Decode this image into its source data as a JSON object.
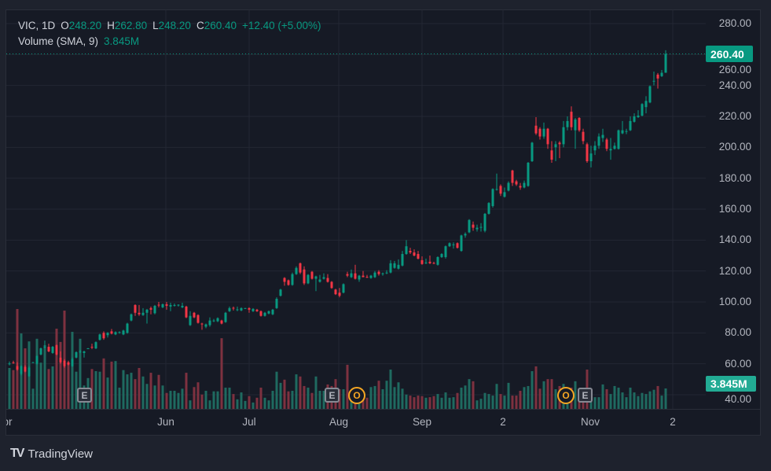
{
  "header": {
    "symbol_interval": "VIC, 1D",
    "open_label": "O",
    "open": "248.20",
    "high_label": "H",
    "high": "262.80",
    "low_label": "L",
    "low": "248.20",
    "close_label": "C",
    "close": "260.40",
    "change": "+12.40 (+5.00%)"
  },
  "volume_legend": {
    "label": "Volume (SMA, 9)",
    "value": "3.845M"
  },
  "badges": {
    "last_price": "260.40",
    "last_volume": "3.845M"
  },
  "brand": {
    "logo": "17",
    "name": "TradingView"
  },
  "colors": {
    "up": "#089981",
    "down": "#f23645",
    "volume_up": "#1f6a60",
    "volume_down": "#7e3140",
    "background": "#161a25",
    "grid": "#232733",
    "volume_badge": "#22ab94",
    "event_other": "#f5a623"
  },
  "chart_data": {
    "type": "candlestick",
    "symbol": "VIC",
    "interval": "1D",
    "y_axis": {
      "range": [
        40,
        280
      ],
      "ticks": [
        "280.00",
        "260.00",
        "240.00",
        "220.00",
        "200.00",
        "180.00",
        "160.00",
        "140.00",
        "120.00",
        "100.00",
        "80.00",
        "60.00",
        "40.00"
      ]
    },
    "x_axis": {
      "ticks": [
        "Apr",
        "Jun",
        "Jul",
        "Aug",
        "Sep",
        "2",
        "Nov",
        "2"
      ]
    },
    "grid": true,
    "last_price": 260.4,
    "events": [
      {
        "label": "E"
      },
      {
        "label": "E"
      },
      {
        "label": "O"
      },
      {
        "label": "O"
      },
      {
        "label": "E"
      }
    ],
    "candles": {
      "columns": [
        "open",
        "high",
        "low",
        "close",
        "volume_millions"
      ],
      "rows": [
        [
          59.8,
          61.5,
          59,
          60.2,
          7.7
        ],
        [
          60.9,
          62,
          60,
          60.7,
          7.3
        ],
        [
          58.5,
          61,
          55.5,
          56.3,
          18.8
        ],
        [
          53.5,
          59,
          52.5,
          58.5,
          14.2
        ],
        [
          58,
          59,
          54.5,
          55,
          11.4
        ],
        [
          52,
          58.5,
          51.5,
          57.5,
          12.7
        ],
        [
          60.8,
          61.2,
          60.6,
          61,
          3.8
        ],
        [
          60,
          65.5,
          59.5,
          65,
          13.2
        ],
        [
          66,
          70.5,
          65.5,
          70,
          8.7
        ],
        [
          70.8,
          75,
          70,
          71,
          12.0
        ],
        [
          71,
          73,
          67.5,
          68,
          7.5
        ],
        [
          67,
          71.5,
          66.5,
          71,
          8.0
        ],
        [
          72,
          72.5,
          65.5,
          66,
          15.1
        ],
        [
          64,
          68,
          60,
          61,
          12.6
        ],
        [
          62,
          63,
          57.5,
          58.5,
          18.5
        ],
        [
          61,
          62,
          59,
          59.5,
          8.6
        ],
        [
          58.5,
          64,
          58,
          63,
          14.5
        ],
        [
          64,
          68,
          63.5,
          67.5,
          7.0
        ],
        [
          67.8,
          69,
          67,
          68,
          13.2
        ],
        [
          67,
          68.5,
          64,
          68,
          4.4
        ],
        [
          69.8,
          70.2,
          69.6,
          70,
          5.8
        ],
        [
          71,
          73,
          69.5,
          70.8,
          7.5
        ],
        [
          70,
          74.5,
          69.5,
          74,
          7.1
        ],
        [
          75.5,
          79.5,
          75,
          79,
          7.0
        ],
        [
          80,
          81,
          75.5,
          76.5,
          9.5
        ],
        [
          78.5,
          80.5,
          77,
          80,
          5.9
        ],
        [
          81,
          82.5,
          79,
          79.5,
          8.9
        ],
        [
          79,
          81,
          78.5,
          80.5,
          9.0
        ],
        [
          80,
          81,
          79.5,
          80.5,
          4.0
        ],
        [
          79,
          82,
          78.5,
          81.5,
          7.3
        ],
        [
          80,
          86.5,
          79.5,
          86,
          6.5
        ],
        [
          88,
          92.5,
          87.5,
          92,
          6.8
        ],
        [
          98,
          98.5,
          91,
          93,
          5.6
        ],
        [
          93,
          98,
          91,
          92,
          7.7
        ],
        [
          91.5,
          96,
          91,
          93,
          6.1
        ],
        [
          93,
          95.5,
          86,
          95,
          4.7
        ],
        [
          96,
          97,
          92,
          95,
          6.8
        ],
        [
          92.7,
          98,
          92,
          97.5,
          4.4
        ],
        [
          98.2,
          100,
          96.5,
          98,
          6.4
        ],
        [
          96.5,
          99,
          96,
          98.5,
          4.4
        ],
        [
          98.5,
          100,
          95,
          97.5,
          3.0
        ],
        [
          97,
          99.5,
          94,
          98,
          3.4
        ],
        [
          97.8,
          99,
          97,
          98,
          3.4
        ],
        [
          98,
          98.5,
          97,
          98.2,
          3.0
        ],
        [
          96.5,
          99.5,
          96,
          97.5,
          3.8
        ],
        [
          97,
          97.5,
          89.5,
          90,
          6.8
        ],
        [
          85,
          94,
          84.5,
          91,
          1.6
        ],
        [
          93,
          93.5,
          89.5,
          90,
          4.1
        ],
        [
          91.5,
          92,
          86,
          86.5,
          5.0
        ],
        [
          86,
          86.5,
          82,
          85.5,
          2.7
        ],
        [
          84,
          86,
          83,
          85.5,
          3.4
        ],
        [
          85,
          90,
          84,
          88,
          1.6
        ],
        [
          87.8,
          89,
          87,
          88,
          3.3
        ],
        [
          87.5,
          90,
          87,
          89.5,
          3.3
        ],
        [
          88,
          88.5,
          85.5,
          86,
          13.3
        ],
        [
          87,
          93.5,
          86.5,
          93,
          4.0
        ],
        [
          94,
          97,
          93.5,
          96,
          4.0
        ],
        [
          96.2,
          97,
          94.5,
          96,
          2.8
        ],
        [
          95,
          97,
          94,
          95.2,
          1.8
        ],
        [
          94.5,
          96.5,
          94,
          96,
          3.1
        ],
        [
          95.8,
          96.2,
          95.6,
          96,
          1.5
        ],
        [
          96,
          96.5,
          93,
          95,
          2.4
        ],
        [
          94,
          96,
          93.5,
          95.5,
          1.2
        ],
        [
          95,
          95.5,
          93.5,
          94,
          2.1
        ],
        [
          94,
          94.5,
          90.5,
          91,
          4.0
        ],
        [
          91,
          93.5,
          90.5,
          93,
          2.1
        ],
        [
          92.5,
          94.5,
          92,
          94,
          1.6
        ],
        [
          92,
          95.5,
          91.5,
          95,
          3.4
        ],
        [
          96,
          103,
          95.5,
          102,
          7.0
        ],
        [
          104,
          108.5,
          103.5,
          108,
          4.9
        ],
        [
          115.5,
          116,
          110.5,
          113,
          5.5
        ],
        [
          114,
          114.5,
          110.5,
          111,
          3.3
        ],
        [
          111,
          119,
          110.5,
          118,
          3.4
        ],
        [
          118,
          123,
          117.5,
          122,
          6.5
        ],
        [
          125,
          125.5,
          118,
          119,
          6.1
        ],
        [
          121,
          123,
          111,
          112,
          4.3
        ],
        [
          112,
          118,
          111.5,
          117.5,
          4.0
        ],
        [
          119.5,
          120,
          114.5,
          115,
          3.0
        ],
        [
          115,
          117,
          107,
          116.5,
          6.1
        ],
        [
          113,
          117.5,
          112.5,
          114.5,
          3.4
        ],
        [
          115,
          118.5,
          114.5,
          116,
          3.4
        ],
        [
          115.5,
          118,
          112.5,
          113,
          4.6
        ],
        [
          113,
          113.5,
          108.5,
          109,
          4.3
        ],
        [
          108,
          108.5,
          104.5,
          105,
          5.6
        ],
        [
          106,
          109,
          103,
          104,
          3.7
        ],
        [
          106,
          112,
          105.5,
          111.5,
          3.7
        ],
        [
          118,
          119.5,
          116,
          117,
          8.3
        ],
        [
          116,
          121,
          115.5,
          118.5,
          3.0
        ],
        [
          118.5,
          124,
          114.5,
          115,
          3.0
        ],
        [
          114.5,
          117.5,
          113,
          117,
          3.0
        ],
        [
          117,
          120,
          116,
          116,
          3.0
        ],
        [
          116.2,
          117.5,
          115.5,
          116,
          2.1
        ],
        [
          115.5,
          117.5,
          115,
          117,
          4.1
        ],
        [
          116,
          120,
          115.5,
          119,
          4.3
        ],
        [
          119.5,
          120.5,
          117,
          118,
          5.3
        ],
        [
          118.3,
          119,
          117,
          118.5,
          3.7
        ],
        [
          118.5,
          120.5,
          118,
          119,
          5.3
        ],
        [
          119,
          127,
          118.5,
          125,
          7.4
        ],
        [
          122,
          126.5,
          121.5,
          125,
          4.1
        ],
        [
          121.5,
          127.5,
          121,
          124,
          5.0
        ],
        [
          123.5,
          133,
          123,
          131,
          3.8
        ],
        [
          131,
          140,
          130.5,
          136,
          2.7
        ],
        [
          133,
          135,
          131,
          132,
          2.5
        ],
        [
          132,
          134,
          129.5,
          130,
          2.2
        ],
        [
          131,
          133,
          127.5,
          128,
          2.5
        ],
        [
          127,
          129.5,
          124,
          124.5,
          2.4
        ],
        [
          125.2,
          128,
          124.5,
          125.5,
          2.1
        ],
        [
          126,
          130,
          124.5,
          125,
          2.2
        ],
        [
          125.2,
          126,
          124.5,
          125,
          2.4
        ],
        [
          124,
          129.5,
          123.5,
          129,
          2.8
        ],
        [
          129,
          131.5,
          128.5,
          131,
          2.1
        ],
        [
          129,
          136.5,
          128,
          136,
          3.1
        ],
        [
          136,
          138.5,
          135.5,
          138,
          2.1
        ],
        [
          137,
          138.5,
          134.5,
          137.2,
          2.2
        ],
        [
          138,
          138.5,
          134.5,
          135,
          3.0
        ],
        [
          133,
          143.5,
          132.5,
          143,
          4.0
        ],
        [
          143,
          145,
          141.5,
          144,
          4.4
        ],
        [
          145,
          153.5,
          144.5,
          153,
          5.6
        ],
        [
          150,
          152,
          146,
          148,
          5.2
        ],
        [
          147,
          150,
          145.5,
          148,
          1.6
        ],
        [
          148,
          151,
          145.5,
          148.5,
          1.9
        ],
        [
          146,
          157.5,
          145,
          157,
          3.0
        ],
        [
          157,
          164.5,
          156.5,
          164,
          2.8
        ],
        [
          162,
          173.5,
          161,
          173,
          2.5
        ],
        [
          172.5,
          183,
          172,
          173,
          4.7
        ],
        [
          175,
          176,
          168.5,
          170,
          2.8
        ],
        [
          168,
          174,
          167.5,
          171,
          2.5
        ],
        [
          172,
          178,
          171.5,
          177,
          4.9
        ],
        [
          185,
          185.5,
          175,
          177,
          2.5
        ],
        [
          178,
          179,
          175,
          176,
          2.5
        ],
        [
          175,
          177,
          172.5,
          174,
          3.4
        ],
        [
          174,
          178.5,
          173.5,
          177,
          4.1
        ],
        [
          175,
          190.5,
          174.5,
          190,
          4.3
        ],
        [
          191,
          203.5,
          190.5,
          203,
          7.1
        ],
        [
          214,
          219.5,
          208,
          209,
          8.0
        ],
        [
          212,
          213,
          205,
          207,
          3.8
        ],
        [
          207,
          216,
          205.5,
          212,
          5.2
        ],
        [
          212,
          212.5,
          199,
          202,
          5.6
        ],
        [
          198,
          204,
          190,
          192,
          5.6
        ],
        [
          200,
          204,
          191,
          202,
          3.7
        ],
        [
          203,
          204,
          193,
          202,
          4.3
        ],
        [
          202,
          217,
          200,
          213,
          4.7
        ],
        [
          213,
          220,
          211,
          217,
          3.6
        ],
        [
          223,
          226.5,
          211,
          213,
          4.0
        ],
        [
          211,
          219,
          199,
          218,
          5.2
        ],
        [
          219,
          219.5,
          210,
          211,
          3.0
        ],
        [
          210,
          212,
          202,
          204,
          3.0
        ],
        [
          202,
          203,
          190,
          191,
          7.4
        ],
        [
          191,
          201,
          187,
          196,
          3.0
        ],
        [
          198,
          204,
          195,
          201,
          2.2
        ],
        [
          201,
          209,
          199,
          207,
          2.2
        ],
        [
          206,
          212,
          203.5,
          208,
          4.6
        ],
        [
          205,
          206,
          197.5,
          199,
          3.7
        ],
        [
          198,
          206,
          192,
          199,
          2.8
        ],
        [
          199,
          203,
          198.5,
          201,
          4.3
        ],
        [
          199,
          211.5,
          198.5,
          211,
          4.0
        ],
        [
          209,
          217,
          208.5,
          211,
          3.1
        ],
        [
          210.3,
          212,
          208.5,
          210.5,
          2.2
        ],
        [
          211,
          220,
          210.5,
          217,
          4.0
        ],
        [
          216.5,
          222,
          216,
          220,
          3.1
        ],
        [
          219.5,
          224,
          219,
          220.5,
          2.4
        ],
        [
          220.5,
          228.5,
          220,
          228,
          3.0
        ],
        [
          226,
          233,
          222,
          230,
          2.8
        ],
        [
          229,
          240,
          228.5,
          239.5,
          3.3
        ],
        [
          242.8,
          249,
          240,
          243,
          3.6
        ],
        [
          247,
          248,
          238,
          244.5,
          4.3
        ],
        [
          246,
          250,
          245.5,
          248.2,
          2.5
        ],
        [
          248.2,
          262.8,
          248.2,
          260.4,
          3.845
        ]
      ]
    }
  }
}
